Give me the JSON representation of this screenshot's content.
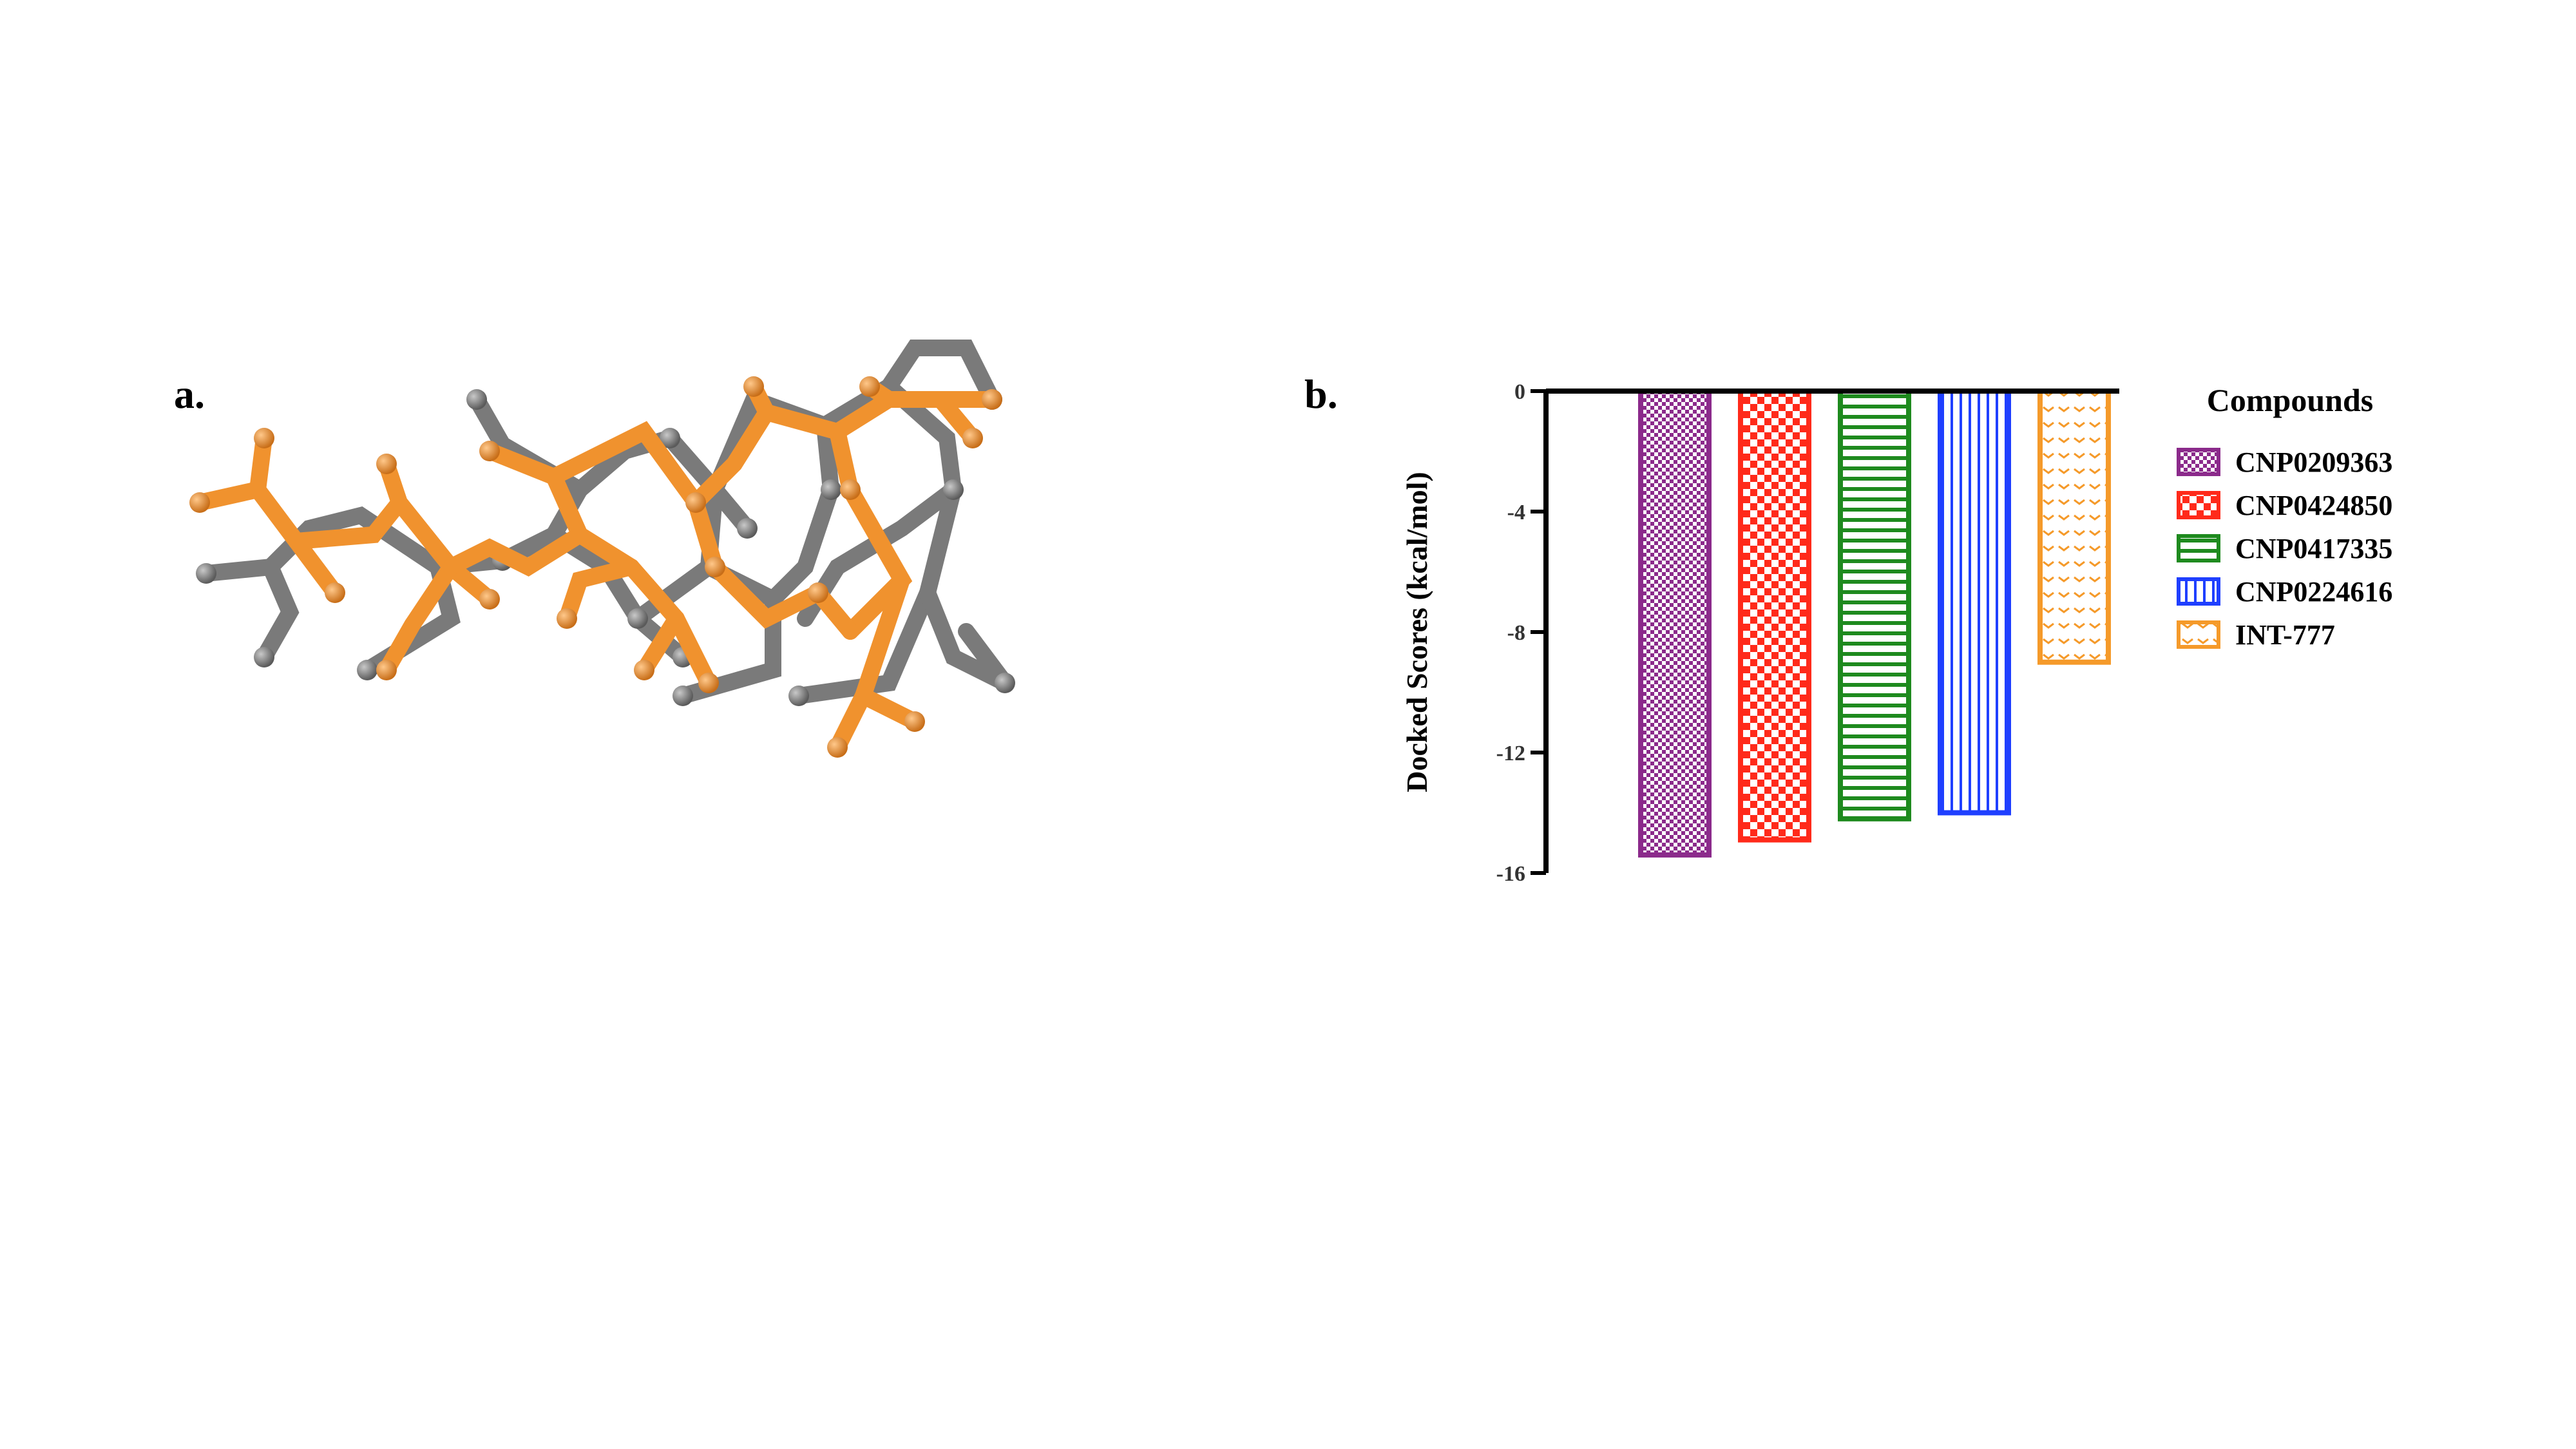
{
  "panels": {
    "a_label": "a.",
    "b_label": "b."
  },
  "colors": {
    "carbon_gray": "#7a7a7a",
    "ligand_orange": "#f0922e",
    "axis": "#000000"
  },
  "chart_data": {
    "type": "bar",
    "ylabel": "Docked Scores (kcal/mol)",
    "xlabel": "",
    "ylim": [
      -16,
      0
    ],
    "yticks": [
      0,
      -4,
      -8,
      -12,
      -16
    ],
    "legend_title": "Compounds",
    "legend_position": "right",
    "categories": [
      "CNP0209363",
      "CNP0424850",
      "CNP0417335",
      "CNP0224616",
      "INT-777"
    ],
    "values": [
      -15.4,
      -14.9,
      -14.2,
      -14.0,
      -9.0
    ],
    "series_colors": [
      "#8b2a8b",
      "#ff2a1a",
      "#1e8a1e",
      "#1f3fff",
      "#f59a2a"
    ],
    "patterns": [
      "checker-fine",
      "checker-large",
      "horizontal-lines",
      "vertical-lines",
      "chevrons"
    ]
  }
}
